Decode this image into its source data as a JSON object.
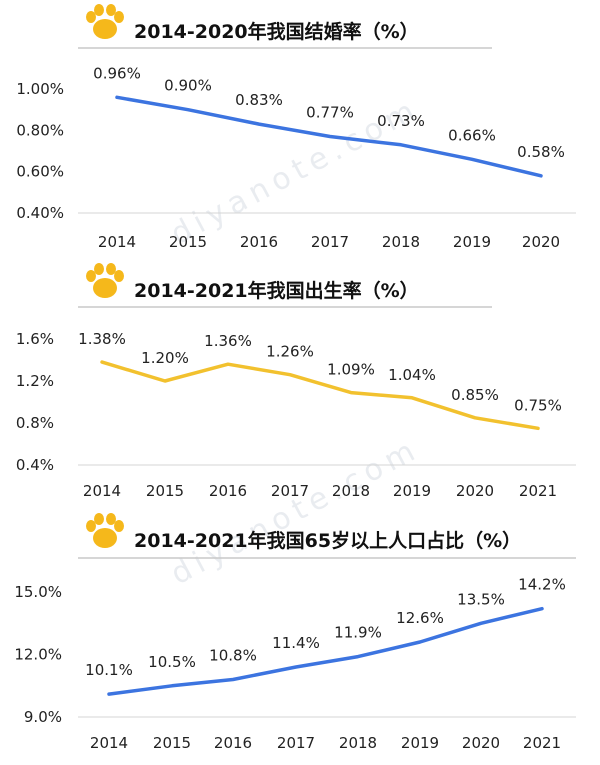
{
  "colors": {
    "paw": "#F5B81B",
    "marriage_line": "#3C74E0",
    "birth_line": "#F2C12E",
    "aging_line": "#3C74E0",
    "underline": "#c8c8c8"
  },
  "icons": [
    "paw-icon",
    "paw-icon",
    "paw-icon"
  ],
  "watermark": "diyanote.com",
  "chart_data": [
    {
      "type": "line",
      "title": "2014-2020年我国结婚率（%）",
      "x": [
        "2014",
        "2015",
        "2016",
        "2017",
        "2018",
        "2019",
        "2020"
      ],
      "values": [
        0.96,
        0.9,
        0.83,
        0.77,
        0.73,
        0.66,
        0.58
      ],
      "value_labels": [
        "0.96%",
        "0.90%",
        "0.83%",
        "0.77%",
        "0.73%",
        "0.66%",
        "0.58%"
      ],
      "yticks": [
        "0.40%",
        "0.60%",
        "0.80%",
        "1.00%"
      ],
      "ytick_values": [
        0.4,
        0.6,
        0.8,
        1.0
      ],
      "ylim": [
        0.4,
        1.0
      ],
      "color": "#3C74E0",
      "grid": false
    },
    {
      "type": "line",
      "title": "2014-2021年我国出生率（%）",
      "x": [
        "2014",
        "2015",
        "2016",
        "2017",
        "2018",
        "2019",
        "2020",
        "2021"
      ],
      "values": [
        1.38,
        1.2,
        1.36,
        1.26,
        1.09,
        1.04,
        0.85,
        0.75
      ],
      "value_labels": [
        "1.38%",
        "1.20%",
        "1.36%",
        "1.26%",
        "1.09%",
        "1.04%",
        "0.85%",
        "0.75%"
      ],
      "yticks": [
        "0.4%",
        "0.8%",
        "1.2%",
        "1.6%"
      ],
      "ytick_values": [
        0.4,
        0.8,
        1.2,
        1.6
      ],
      "ylim": [
        0.4,
        1.6
      ],
      "color": "#F2C12E",
      "grid": false
    },
    {
      "type": "line",
      "title": "2014-2021年我国65岁以上人口占比（%）",
      "x": [
        "2014",
        "2015",
        "2016",
        "2017",
        "2018",
        "2019",
        "2020",
        "2021"
      ],
      "values": [
        10.1,
        10.5,
        10.8,
        11.4,
        11.9,
        12.6,
        13.5,
        14.2
      ],
      "value_labels": [
        "10.1%",
        "10.5%",
        "10.8%",
        "11.4%",
        "11.9%",
        "12.6%",
        "13.5%",
        "14.2%"
      ],
      "yticks": [
        "9.0%",
        "12.0%",
        "15.0%"
      ],
      "ytick_values": [
        9.0,
        12.0,
        15.0
      ],
      "ylim": [
        9.0,
        15.0
      ],
      "color": "#3C74E0",
      "grid": false
    }
  ]
}
